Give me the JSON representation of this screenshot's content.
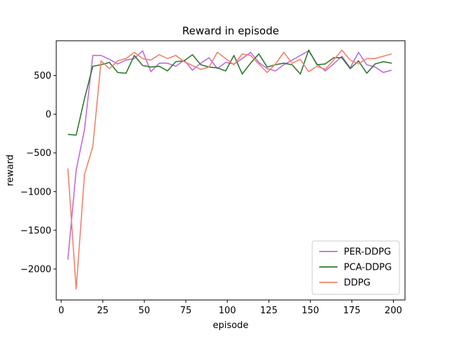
{
  "chart_data": {
    "type": "line",
    "title": "Reward in episode",
    "xlabel": "episode",
    "ylabel": "reward",
    "xlim": [
      -3,
      207
    ],
    "ylim": [
      -2400,
      950
    ],
    "xticks": [
      0,
      25,
      50,
      75,
      100,
      125,
      150,
      175,
      200
    ],
    "xtick_labels": [
      "0",
      "25",
      "50",
      "75",
      "100",
      "125",
      "150",
      "175",
      "200"
    ],
    "yticks": [
      -2000,
      -1500,
      -1000,
      -500,
      0,
      500
    ],
    "ytick_labels": [
      "−2000",
      "−1500",
      "−1000",
      "−500",
      "0",
      "500"
    ],
    "grid": false,
    "legend": "lower-right",
    "x": [
      4,
      9,
      14,
      19,
      24,
      29,
      34,
      39,
      44,
      49,
      54,
      59,
      64,
      69,
      74,
      79,
      84,
      89,
      94,
      99,
      104,
      109,
      114,
      119,
      124,
      129,
      134,
      139,
      144,
      149,
      154,
      159,
      164,
      169,
      174,
      179,
      184,
      189,
      194,
      199
    ],
    "series": [
      {
        "name": "PER-DDPG",
        "color": "#bf6bdc",
        "values": [
          -1880,
          -720,
          -200,
          760,
          760,
          710,
          650,
          700,
          720,
          820,
          550,
          660,
          660,
          620,
          700,
          570,
          660,
          730,
          590,
          670,
          650,
          720,
          800,
          670,
          590,
          560,
          640,
          700,
          760,
          820,
          650,
          560,
          650,
          750,
          600,
          800,
          640,
          610,
          540,
          570
        ]
      },
      {
        "name": "PCA-DDPG",
        "color": "#2e7a2e",
        "values": [
          -260,
          -270,
          200,
          620,
          640,
          670,
          540,
          530,
          760,
          630,
          610,
          620,
          560,
          680,
          690,
          770,
          640,
          610,
          600,
          560,
          760,
          520,
          660,
          780,
          610,
          640,
          660,
          640,
          520,
          830,
          640,
          650,
          730,
          730,
          590,
          690,
          530,
          650,
          680,
          660
        ]
      },
      {
        "name": "DDPG",
        "color": "#f0826b",
        "values": [
          -700,
          -2260,
          -780,
          -420,
          690,
          590,
          690,
          720,
          800,
          720,
          700,
          770,
          720,
          760,
          680,
          630,
          580,
          610,
          800,
          720,
          640,
          780,
          760,
          650,
          540,
          650,
          800,
          660,
          710,
          550,
          620,
          580,
          700,
          830,
          700,
          650,
          720,
          720,
          750,
          780
        ]
      }
    ]
  }
}
